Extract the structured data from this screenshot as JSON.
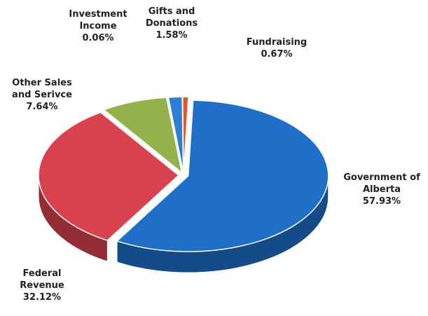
{
  "chart_data": {
    "type": "pie",
    "categories": [
      "Government of Alberta",
      "Federal Revenue",
      "Other Sales and Serivce",
      "Investment Income",
      "Gifts and Donations",
      "Fundraising"
    ],
    "values": [
      57.93,
      32.12,
      7.64,
      0.06,
      1.58,
      0.67
    ],
    "value_labels": [
      "57.93%",
      "32.12%",
      "7.64%",
      "0.06%",
      "1.58%",
      "0.67%"
    ],
    "colors": [
      "#1f6fc8",
      "#d8424f",
      "#93b24c",
      "#c0504d",
      "#2b7fd4",
      "#e2572e"
    ]
  }
}
